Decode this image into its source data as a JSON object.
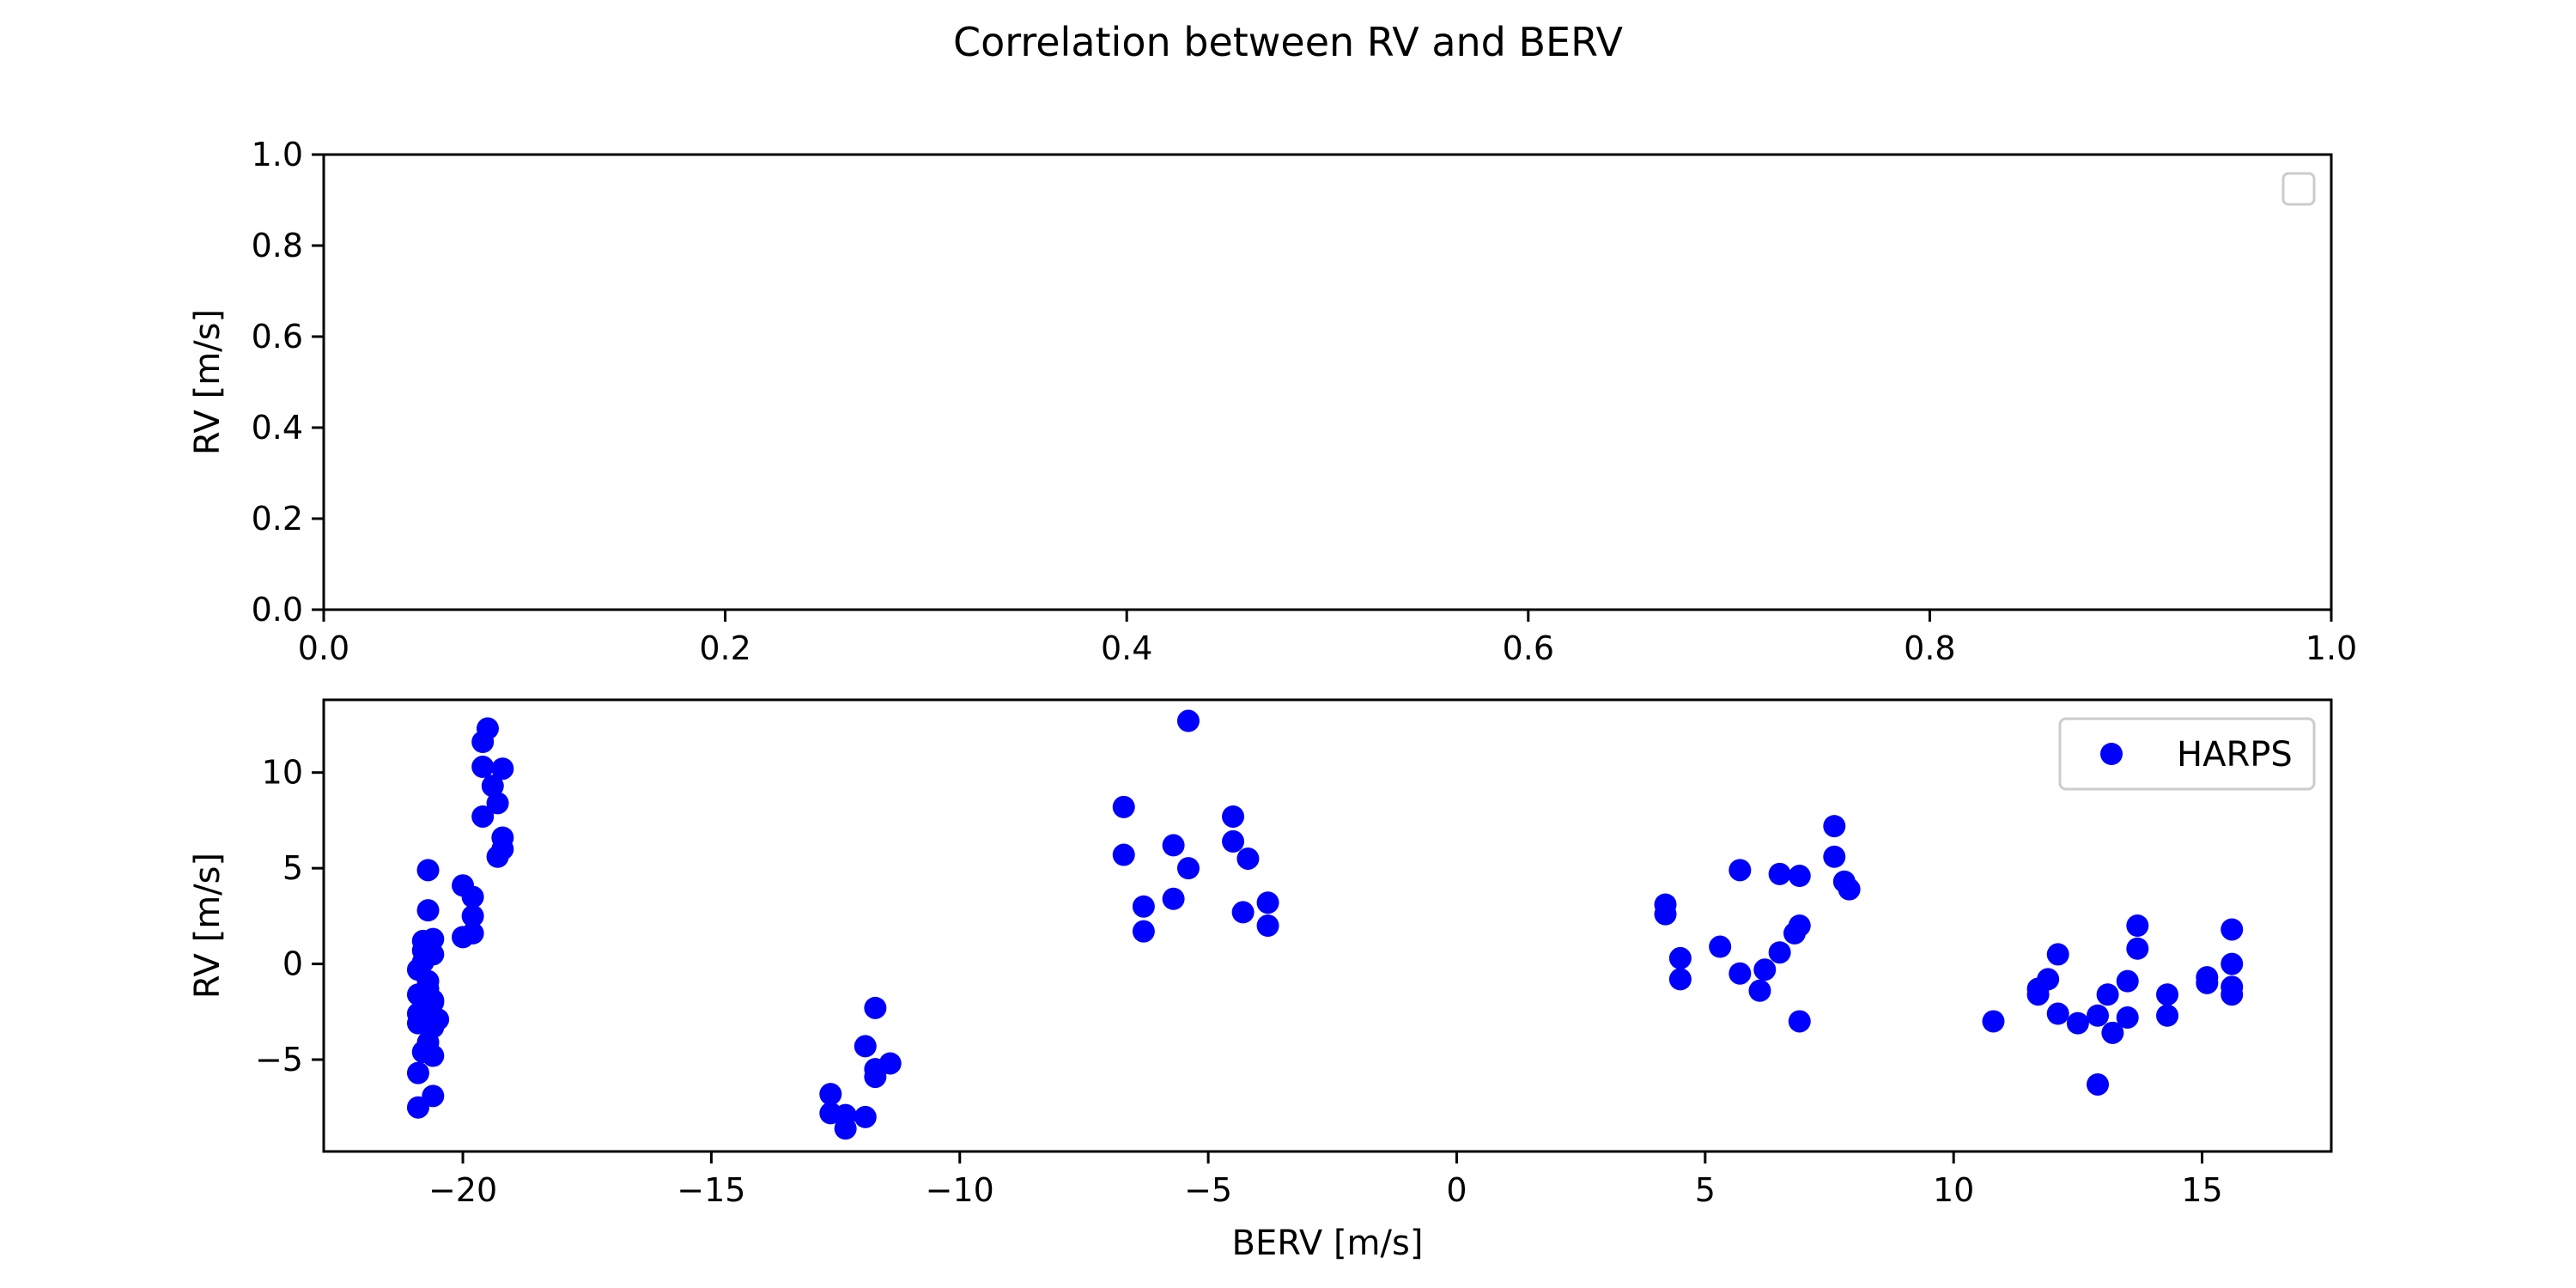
{
  "figure": {
    "title": "Correlation between RV and BERV"
  },
  "chart_data": [
    {
      "type": "scatter",
      "title": "",
      "xlabel": "",
      "ylabel": "RV [m/s]",
      "xlim": [
        0.0,
        1.0
      ],
      "ylim": [
        0.0,
        1.0
      ],
      "xticks": [
        "0.0",
        "0.2",
        "0.4",
        "0.6",
        "0.8",
        "1.0"
      ],
      "yticks": [
        "0.0",
        "0.2",
        "0.4",
        "0.6",
        "0.8",
        "1.0"
      ],
      "grid": false,
      "legend": {
        "position": "top-right",
        "entries": []
      },
      "series": []
    },
    {
      "type": "scatter",
      "title": "",
      "xlabel": "BERV [m/s]",
      "ylabel": "RV [m/s]",
      "xlim": [
        -22.8,
        17.6
      ],
      "ylim": [
        -9.8,
        13.8
      ],
      "xticks": [
        "−20",
        "−15",
        "−10",
        "−5",
        "0",
        "5",
        "10",
        "15"
      ],
      "yticks": [
        "−5",
        "0",
        "5",
        "10"
      ],
      "grid": false,
      "legend": {
        "position": "top-right",
        "entries": [
          "HARPS"
        ]
      },
      "series": [
        {
          "name": "HARPS",
          "color": "#0000ff",
          "marker": "circle",
          "points": [
            [
              -20.9,
              -7.5
            ],
            [
              -20.9,
              -5.7
            ],
            [
              -20.8,
              -4.6
            ],
            [
              -20.9,
              -3.1
            ],
            [
              -20.9,
              -2.6
            ],
            [
              -20.9,
              -1.6
            ],
            [
              -20.9,
              -0.3
            ],
            [
              -20.8,
              0.1
            ],
            [
              -20.8,
              0.7
            ],
            [
              -20.8,
              1.2
            ],
            [
              -20.7,
              2.8
            ],
            [
              -20.7,
              4.9
            ],
            [
              -20.7,
              -0.9
            ],
            [
              -20.6,
              -3.3
            ],
            [
              -20.6,
              -1.9
            ],
            [
              -20.6,
              -4.8
            ],
            [
              -20.6,
              -6.9
            ],
            [
              -20.5,
              -2.9
            ],
            [
              -20.6,
              -2.0
            ],
            [
              -20.7,
              -1.3
            ],
            [
              -20.6,
              0.5
            ],
            [
              -20.6,
              1.3
            ],
            [
              -20.7,
              -4.1
            ],
            [
              -20.0,
              4.1
            ],
            [
              -20.0,
              1.4
            ],
            [
              -19.8,
              3.5
            ],
            [
              -19.8,
              2.5
            ],
            [
              -19.8,
              1.6
            ],
            [
              -19.6,
              10.3
            ],
            [
              -19.6,
              11.6
            ],
            [
              -19.5,
              12.3
            ],
            [
              -19.4,
              9.3
            ],
            [
              -19.3,
              8.4
            ],
            [
              -19.2,
              10.2
            ],
            [
              -19.2,
              6.6
            ],
            [
              -19.2,
              6.0
            ],
            [
              -19.3,
              5.6
            ],
            [
              -19.6,
              7.7
            ],
            [
              -12.6,
              -6.8
            ],
            [
              -12.6,
              -7.8
            ],
            [
              -12.3,
              -7.9
            ],
            [
              -12.3,
              -8.6
            ],
            [
              -11.9,
              -8.0
            ],
            [
              -11.9,
              -4.3
            ],
            [
              -11.7,
              -5.9
            ],
            [
              -11.7,
              -5.5
            ],
            [
              -11.7,
              -2.3
            ],
            [
              -11.4,
              -5.2
            ],
            [
              -6.7,
              8.2
            ],
            [
              -6.7,
              5.7
            ],
            [
              -6.3,
              3.0
            ],
            [
              -6.3,
              1.7
            ],
            [
              -5.7,
              6.2
            ],
            [
              -5.7,
              3.4
            ],
            [
              -5.4,
              12.7
            ],
            [
              -5.4,
              5.0
            ],
            [
              -4.5,
              7.7
            ],
            [
              -4.5,
              6.4
            ],
            [
              -4.3,
              2.7
            ],
            [
              -4.2,
              5.5
            ],
            [
              -3.8,
              3.2
            ],
            [
              -3.8,
              2.0
            ],
            [
              4.2,
              3.1
            ],
            [
              4.2,
              2.6
            ],
            [
              4.5,
              0.3
            ],
            [
              4.5,
              -0.8
            ],
            [
              5.3,
              0.9
            ],
            [
              5.7,
              4.9
            ],
            [
              5.7,
              -0.5
            ],
            [
              6.1,
              -1.4
            ],
            [
              6.2,
              -0.3
            ],
            [
              6.5,
              4.7
            ],
            [
              6.5,
              0.6
            ],
            [
              6.8,
              1.6
            ],
            [
              6.9,
              2.0
            ],
            [
              6.9,
              4.6
            ],
            [
              6.9,
              -3.0
            ],
            [
              7.6,
              7.2
            ],
            [
              7.6,
              5.6
            ],
            [
              7.8,
              4.3
            ],
            [
              7.9,
              3.9
            ],
            [
              10.8,
              -3.0
            ],
            [
              11.7,
              -1.3
            ],
            [
              11.7,
              -1.6
            ],
            [
              11.9,
              -0.8
            ],
            [
              12.1,
              0.5
            ],
            [
              12.1,
              -2.6
            ],
            [
              12.5,
              -3.1
            ],
            [
              12.9,
              -2.7
            ],
            [
              12.9,
              -6.3
            ],
            [
              13.1,
              -1.6
            ],
            [
              13.2,
              -3.6
            ],
            [
              13.5,
              -0.9
            ],
            [
              13.5,
              -2.8
            ],
            [
              13.7,
              2.0
            ],
            [
              13.7,
              0.8
            ],
            [
              14.3,
              -1.6
            ],
            [
              14.3,
              -2.7
            ],
            [
              15.1,
              -0.7
            ],
            [
              15.1,
              -1.0
            ],
            [
              15.6,
              1.8
            ],
            [
              15.6,
              0.0
            ],
            [
              15.6,
              -1.2
            ],
            [
              15.6,
              -1.6
            ]
          ]
        }
      ]
    }
  ]
}
